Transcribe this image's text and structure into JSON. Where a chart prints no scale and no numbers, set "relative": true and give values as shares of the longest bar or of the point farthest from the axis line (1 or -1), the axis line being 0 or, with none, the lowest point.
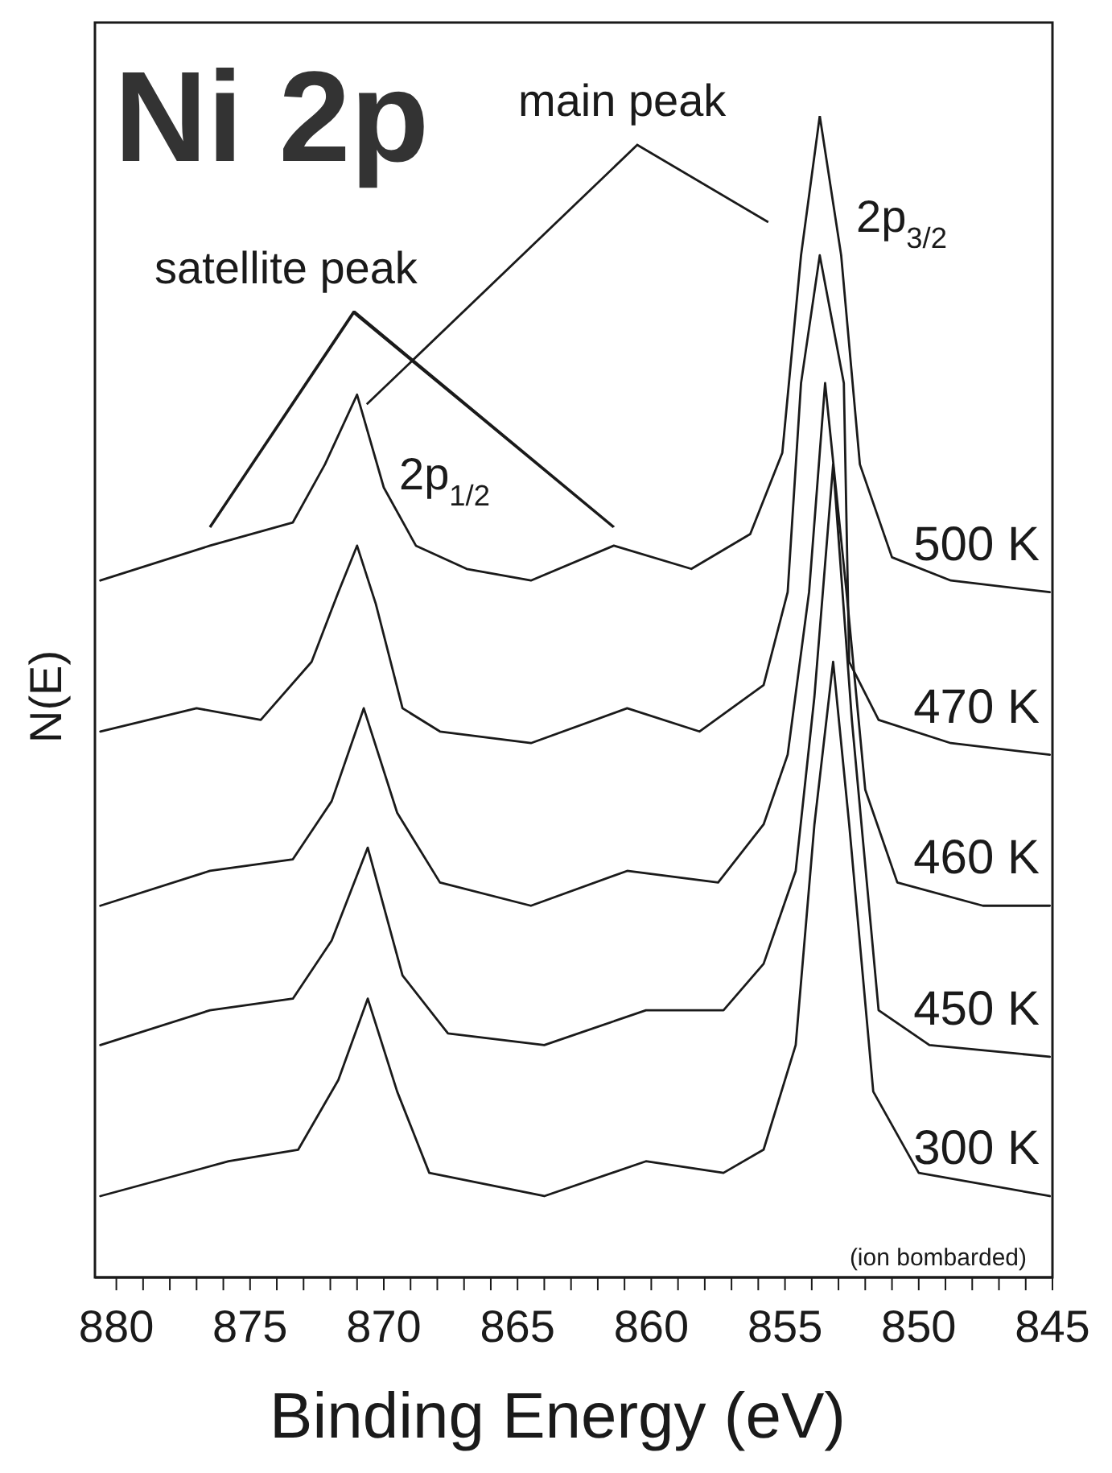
{
  "chart_data": {
    "type": "line",
    "title": "Ni 2p",
    "xlabel": "Binding Energy (eV)",
    "ylabel": "N(E)",
    "relative": true,
    "annotations": [
      "main peak",
      "satellite peak",
      "2p$_{3/2}$",
      "2p$_{1/2}$",
      "(ion bombarded)"
    ],
    "xlim": [
      880.8,
      845
    ],
    "xticks": [
      880,
      {
        "value": 879,
        "label": null
      },
      {
        "value": 878,
        "label": null
      },
      {
        "value": 877,
        "label": null
      },
      {
        "value": 876,
        "label": null
      },
      875,
      {
        "value": 874,
        "label": null
      },
      {
        "value": 873,
        "label": null
      },
      {
        "value": 872,
        "label": null
      },
      {
        "value": 871,
        "label": null
      },
      870,
      {
        "value": 869,
        "label": null
      },
      {
        "value": 868,
        "label": null
      },
      {
        "value": 867,
        "label": null
      },
      {
        "value": 866,
        "label": null
      },
      865,
      {
        "value": 864,
        "label": null
      },
      {
        "value": 863,
        "label": null
      },
      {
        "value": 862,
        "label": null
      },
      {
        "value": 861,
        "label": null
      },
      860,
      {
        "value": 859,
        "label": null
      },
      {
        "value": 858,
        "label": null
      },
      {
        "value": 857,
        "label": null
      },
      {
        "value": 856,
        "label": null
      },
      855,
      {
        "value": 854,
        "label": null
      },
      {
        "value": 853,
        "label": null
      },
      {
        "value": 852,
        "label": null
      },
      {
        "value": 851,
        "label": null
      },
      850,
      {
        "value": 849,
        "label": null
      },
      {
        "value": 848,
        "label": null
      },
      {
        "value": 847,
        "label": null
      },
      {
        "value": 846,
        "label": null
      },
      845
    ],
    "tick_labels": "x",
    "marker": "none",
    "line_style": "solid",
    "series": [
      {
        "name": "500 K",
        "color": "#1a1a1a",
        "x": [
          880.6,
          876.5,
          873.4,
          872.2,
          871.0,
          870.0,
          868.8,
          866.9,
          864.5,
          861.4,
          858.5,
          856.3,
          855.1,
          854.4,
          853.7,
          852.9,
          852.2,
          851.0,
          848.8,
          845.1
        ],
        "values": [
          0.6,
          0.63,
          0.65,
          0.7,
          0.76,
          0.68,
          0.63,
          0.61,
          0.6,
          0.63,
          0.61,
          0.64,
          0.71,
          0.88,
          1.0,
          0.88,
          0.7,
          0.62,
          0.6,
          0.59
        ]
      },
      {
        "name": "470 K",
        "color": "#1a1a1a",
        "x": [
          880.6,
          877.0,
          874.6,
          872.7,
          871.7,
          871.0,
          870.3,
          869.3,
          867.9,
          864.5,
          860.9,
          858.2,
          855.8,
          854.9,
          854.4,
          853.7,
          852.8,
          852.6,
          851.5,
          848.8,
          845.1
        ],
        "values": [
          0.47,
          0.49,
          0.48,
          0.53,
          0.59,
          0.63,
          0.58,
          0.49,
          0.47,
          0.46,
          0.49,
          0.47,
          0.51,
          0.59,
          0.77,
          0.88,
          0.77,
          0.53,
          0.48,
          0.46,
          0.45
        ]
      },
      {
        "name": "460 K",
        "color": "#1a1a1a",
        "x": [
          880.6,
          876.5,
          873.4,
          871.95,
          870.75,
          869.5,
          867.9,
          864.5,
          860.9,
          857.5,
          855.8,
          854.9,
          854.1,
          853.5,
          852.7,
          852.0,
          850.8,
          847.6,
          845.1
        ],
        "values": [
          0.32,
          0.35,
          0.36,
          0.41,
          0.49,
          0.4,
          0.34,
          0.32,
          0.35,
          0.34,
          0.39,
          0.45,
          0.59,
          0.77,
          0.59,
          0.42,
          0.34,
          0.32,
          0.32
        ]
      },
      {
        "name": "450 K",
        "color": "#1a1a1a",
        "x": [
          880.6,
          876.5,
          873.4,
          871.95,
          870.6,
          869.3,
          867.6,
          864.0,
          860.2,
          857.3,
          855.8,
          854.6,
          853.9,
          853.2,
          852.5,
          851.5,
          849.6,
          845.1
        ],
        "values": [
          0.2,
          0.23,
          0.24,
          0.29,
          0.37,
          0.26,
          0.21,
          0.2,
          0.23,
          0.23,
          0.27,
          0.35,
          0.5,
          0.7,
          0.48,
          0.23,
          0.2,
          0.19
        ]
      },
      {
        "name": "300 K",
        "color": "#1a1a1a",
        "x": [
          880.6,
          875.8,
          873.2,
          871.7,
          870.6,
          869.5,
          868.3,
          864.0,
          860.2,
          857.3,
          855.8,
          854.6,
          853.9,
          853.2,
          852.6,
          851.7,
          850.0,
          845.1
        ],
        "values": [
          0.07,
          0.1,
          0.11,
          0.17,
          0.24,
          0.16,
          0.09,
          0.07,
          0.1,
          0.09,
          0.11,
          0.2,
          0.39,
          0.53,
          0.39,
          0.16,
          0.09,
          0.07
        ]
      }
    ]
  }
}
